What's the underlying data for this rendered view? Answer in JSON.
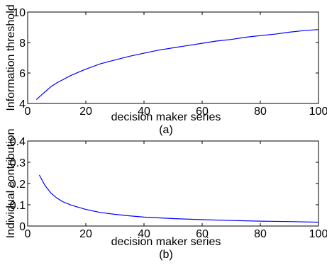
{
  "chart_data": [
    {
      "type": "line",
      "caption": "(a)",
      "xlabel": "decision maker series",
      "ylabel": "Information threshold",
      "xlim": [
        0,
        100
      ],
      "ylim": [
        4,
        10
      ],
      "xticks": [
        0,
        20,
        40,
        60,
        80,
        100
      ],
      "yticks": [
        4,
        6,
        8,
        10
      ],
      "grid": false,
      "line_color": "#0000ff",
      "x": [
        3,
        5,
        8,
        10,
        15,
        20,
        25,
        30,
        35,
        40,
        45,
        50,
        55,
        60,
        65,
        70,
        75,
        80,
        85,
        90,
        95,
        100
      ],
      "y": [
        4.25,
        4.6,
        5.1,
        5.35,
        5.85,
        6.25,
        6.6,
        6.85,
        7.1,
        7.3,
        7.5,
        7.65,
        7.8,
        7.95,
        8.1,
        8.2,
        8.35,
        8.45,
        8.55,
        8.68,
        8.78,
        8.85
      ]
    },
    {
      "type": "line",
      "caption": "(b)",
      "xlabel": "decision maker series",
      "ylabel": "Individual contribution",
      "xlim": [
        0,
        100
      ],
      "ylim": [
        0,
        0.4
      ],
      "xticks": [
        0,
        20,
        40,
        60,
        80,
        100
      ],
      "yticks": [
        0,
        0.1,
        0.2,
        0.3,
        0.4
      ],
      "grid": false,
      "line_color": "#0000ff",
      "x": [
        4,
        6,
        8,
        10,
        12,
        15,
        20,
        25,
        30,
        35,
        40,
        50,
        60,
        70,
        80,
        90,
        100
      ],
      "y": [
        0.24,
        0.19,
        0.155,
        0.132,
        0.115,
        0.098,
        0.078,
        0.064,
        0.055,
        0.048,
        0.042,
        0.035,
        0.03,
        0.026,
        0.023,
        0.021,
        0.018
      ]
    }
  ]
}
